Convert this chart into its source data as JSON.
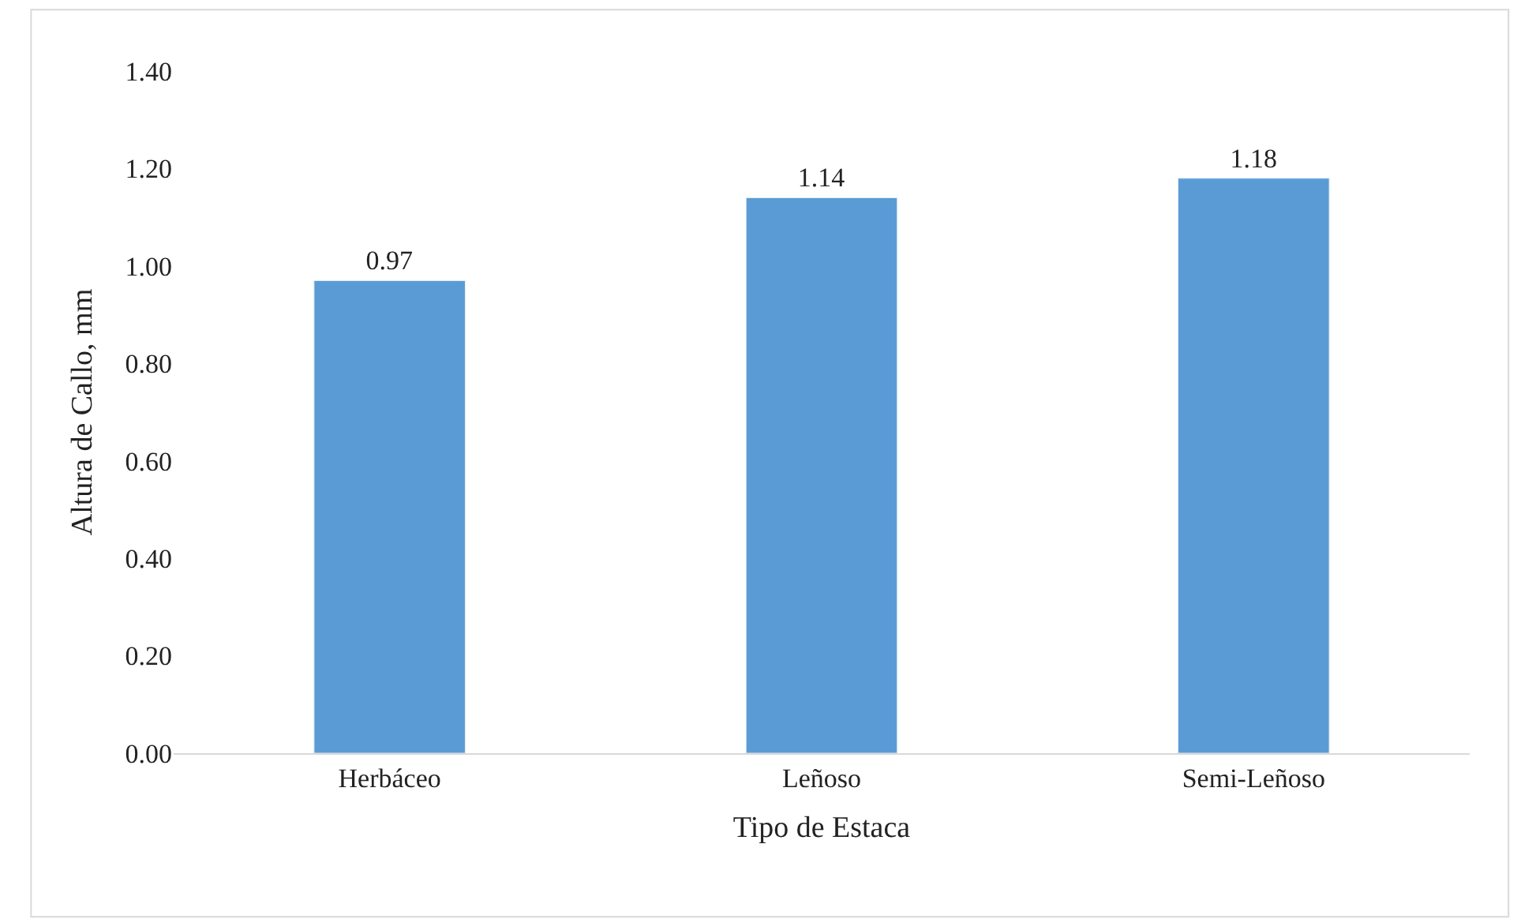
{
  "chart_data": {
    "type": "bar",
    "xlabel": "Tipo de Estaca",
    "ylabel": "Altura de Callo, mm",
    "categories": [
      "Herbáceo",
      "Leñoso",
      "Semi-Leñoso"
    ],
    "values": [
      0.97,
      1.14,
      1.18
    ],
    "color": "#5b9bd5",
    "ylim": [
      0,
      1.4
    ],
    "yticks": [
      {
        "value": 0,
        "label": "0.00"
      },
      {
        "value": 0.2,
        "label": "0.20"
      },
      {
        "value": 0.4,
        "label": "0.40"
      },
      {
        "value": 0.6,
        "label": "0.60"
      },
      {
        "value": 0.8,
        "label": "0.80"
      },
      {
        "value": 1.0,
        "label": "1.00"
      },
      {
        "value": 1.2,
        "label": "1.20"
      },
      {
        "value": 1.4,
        "label": "1.40"
      }
    ],
    "data_labels": true,
    "grid": false,
    "legend": false
  }
}
